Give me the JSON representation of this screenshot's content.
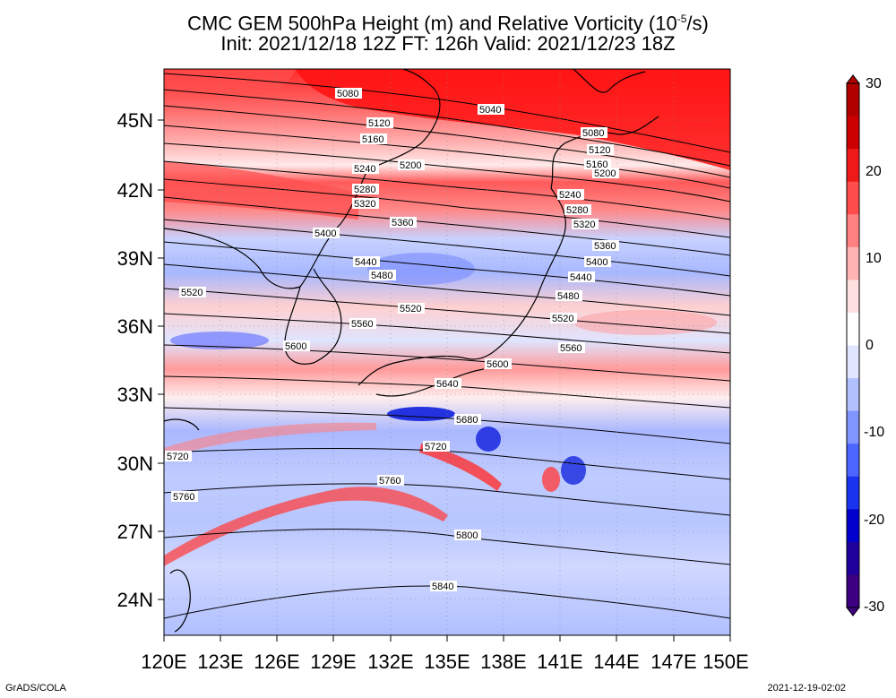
{
  "title": {
    "line1": "CMC GEM 500hPa Height (m) and Relative Vorticity (10",
    "line1_sup": "-5",
    "line1_end": "/s)",
    "line2": "Init: 2021/12/18 12Z  FT: 126h  Valid: 2021/12/23 18Z"
  },
  "map": {
    "lon_labels": [
      "120E",
      "123E",
      "126E",
      "129E",
      "132E",
      "135E",
      "138E",
      "141E",
      "144E",
      "147E",
      "150E"
    ],
    "lat_labels": [
      "24N",
      "27N",
      "30N",
      "33N",
      "36N",
      "39N",
      "42N",
      "45N"
    ],
    "contour_labels": [
      "5040",
      "5080",
      "5080",
      "5120",
      "5120",
      "5160",
      "5160",
      "5200",
      "5200",
      "5240",
      "5240",
      "5280",
      "5280",
      "5320",
      "5320",
      "5360",
      "5360",
      "5400",
      "5400",
      "5440",
      "5440",
      "5480",
      "5480",
      "5520",
      "5520",
      "5520",
      "5560",
      "5560",
      "5600",
      "5600",
      "5640",
      "5680",
      "5720",
      "5720",
      "5760",
      "5760",
      "5800",
      "5840"
    ]
  },
  "colorbar": {
    "ticks": [
      "30",
      "20",
      "10",
      "0",
      "-10",
      "-20",
      "-30"
    ],
    "colors_top_to_bottom": [
      "#b00000",
      "#cc0000",
      "#ee1a1a",
      "#ff4d4d",
      "#ff8080",
      "#ffb3b3",
      "#ffe0e0",
      "#ffffff",
      "#e0e6ff",
      "#b3c2ff",
      "#8095ff",
      "#4d66ff",
      "#1a33ee",
      "#0000cc",
      "#20009a",
      "#3c0080"
    ]
  },
  "footer": {
    "left": "GrADS/COLA",
    "right": "2021-12-19-02:02"
  }
}
